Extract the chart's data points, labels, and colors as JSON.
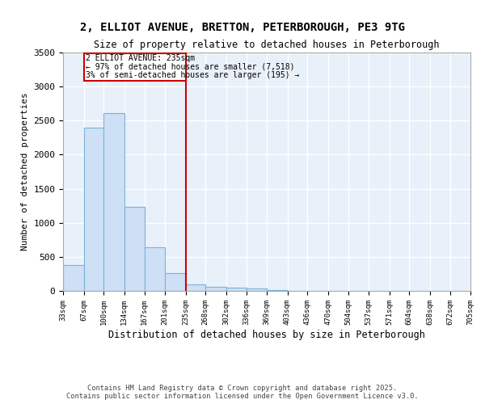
{
  "title_line1": "2, ELLIOT AVENUE, BRETTON, PETERBOROUGH, PE3 9TG",
  "title_line2": "Size of property relative to detached houses in Peterborough",
  "xlabel": "Distribution of detached houses by size in Peterborough",
  "ylabel": "Number of detached properties",
  "footer_line1": "Contains HM Land Registry data © Crown copyright and database right 2025.",
  "footer_line2": "Contains public sector information licensed under the Open Government Licence v3.0.",
  "annotation_line1": "2 ELLIOT AVENUE: 235sqm",
  "annotation_line2": "← 97% of detached houses are smaller (7,518)",
  "annotation_line3": "3% of semi-detached houses are larger (195) →",
  "marker_color": "#cc0000",
  "bar_color_fill": "#cde0f5",
  "bar_color_edge": "#7ab3d9",
  "background_color": "#e8f0fa",
  "grid_color": "#ffffff",
  "bins": [
    33,
    67,
    100,
    134,
    167,
    201,
    235,
    268,
    302,
    336,
    369,
    403,
    436,
    470,
    504,
    537,
    571,
    604,
    638,
    672,
    705
  ],
  "values": [
    380,
    2400,
    2610,
    1230,
    640,
    260,
    92,
    62,
    50,
    35,
    10,
    5,
    3,
    2,
    1,
    0,
    0,
    0,
    0,
    0
  ],
  "ylim": [
    0,
    3500
  ],
  "yticks": [
    0,
    500,
    1000,
    1500,
    2000,
    2500,
    3000,
    3500
  ]
}
